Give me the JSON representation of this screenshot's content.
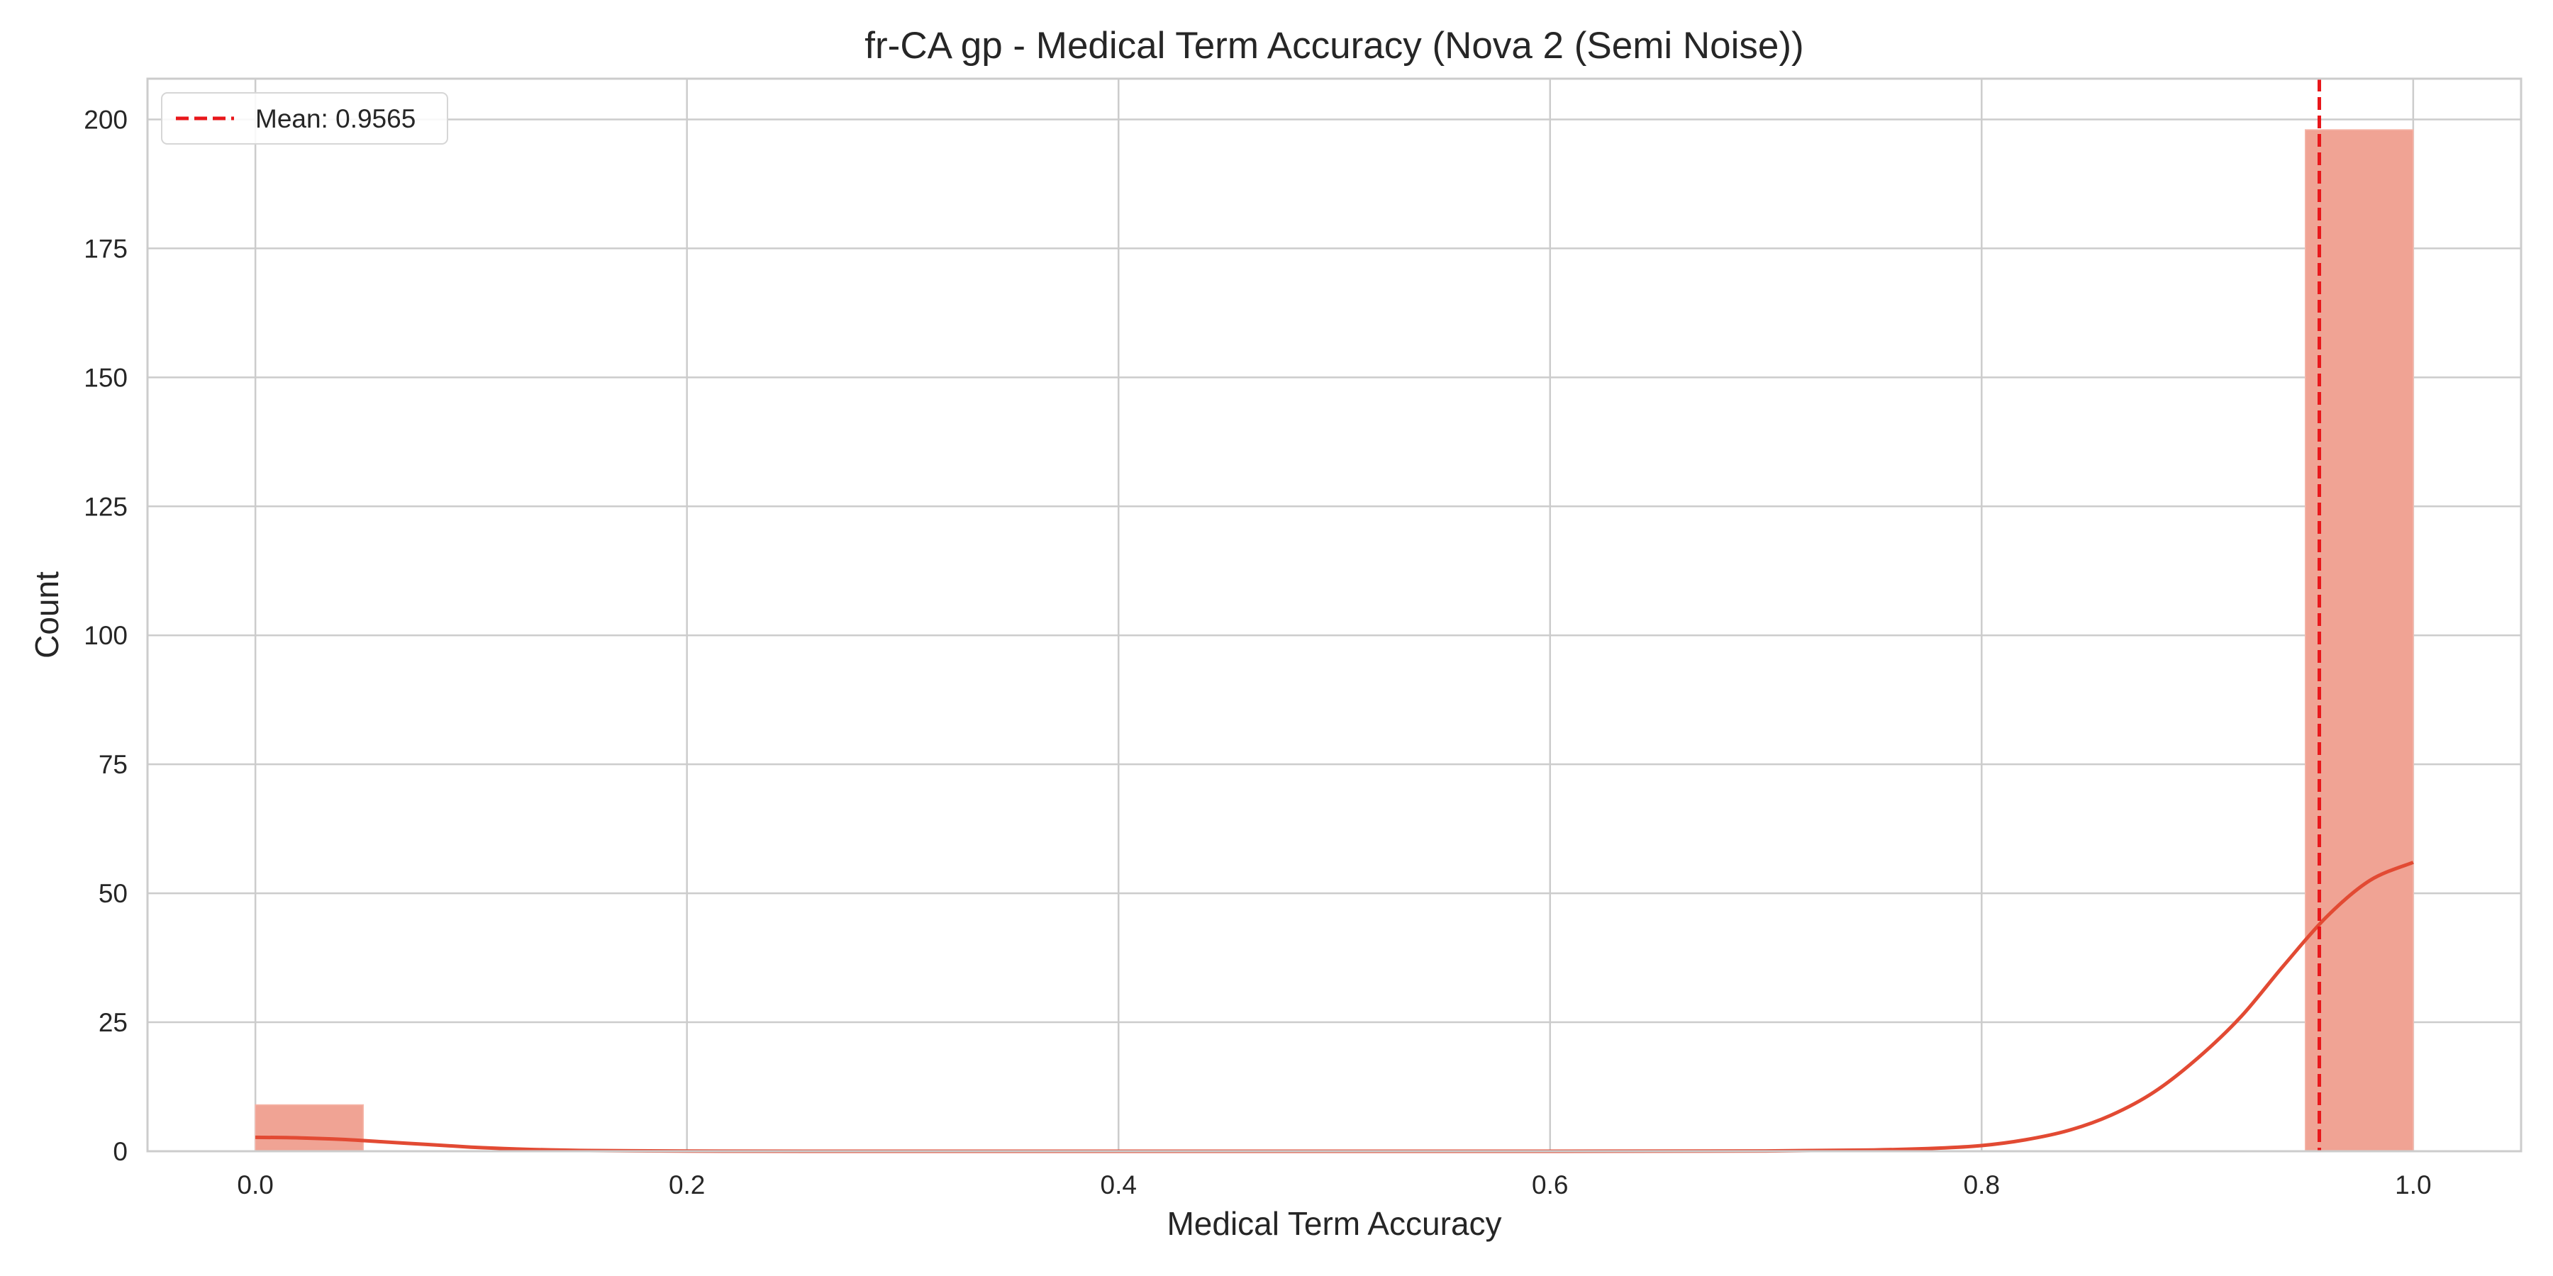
{
  "chart_data": {
    "type": "histogram",
    "title": "fr-CA gp - Medical Term Accuracy (Nova 2 (Semi Noise))",
    "xlabel": "Medical Term Accuracy",
    "ylabel": "Count",
    "xlim": [
      -0.05,
      1.05
    ],
    "ylim": [
      0,
      207.9
    ],
    "x_ticks": [
      0.0,
      0.2,
      0.4,
      0.6,
      0.8,
      1.0
    ],
    "x_tick_labels": [
      "0.0",
      "0.2",
      "0.4",
      "0.6",
      "0.8",
      "1.0"
    ],
    "y_ticks": [
      0,
      25,
      50,
      75,
      100,
      125,
      150,
      175,
      200
    ],
    "y_tick_labels": [
      "0",
      "25",
      "50",
      "75",
      "100",
      "125",
      "150",
      "175",
      "200"
    ],
    "grid": true,
    "bins": [
      {
        "x0": 0.0,
        "x1": 0.05,
        "count": 9
      },
      {
        "x0": 0.95,
        "x1": 1.0,
        "count": 198
      }
    ],
    "kde": {
      "x": [
        0.0,
        0.02,
        0.04,
        0.06,
        0.08,
        0.1,
        0.12,
        0.15,
        0.2,
        0.3,
        0.4,
        0.5,
        0.6,
        0.7,
        0.75,
        0.78,
        0.8,
        0.82,
        0.84,
        0.86,
        0.88,
        0.9,
        0.92,
        0.94,
        0.96,
        0.98,
        1.0
      ],
      "y": [
        2.7,
        2.6,
        2.3,
        1.8,
        1.3,
        0.8,
        0.45,
        0.15,
        0.03,
        0.0,
        0.0,
        0.0,
        0.0,
        0.05,
        0.25,
        0.6,
        1.1,
        2.2,
        4.0,
        7.0,
        11.5,
        18.0,
        26.0,
        36.0,
        45.5,
        52.5,
        56.0
      ]
    },
    "mean": 0.9565,
    "legend": {
      "label": "Mean: 0.9565",
      "placement": "top-left"
    },
    "colors": {
      "bar": "#f0a394",
      "bar_edge": "#f6b7aa",
      "kde": "#e24a33",
      "mean_line": "#e8171b",
      "grid": "#cccccc",
      "axis": "#cccccc",
      "text": "#262626"
    }
  }
}
